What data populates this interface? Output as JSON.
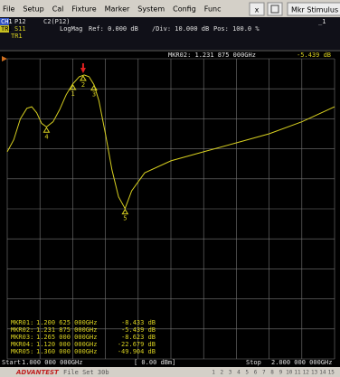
{
  "menu": {
    "items": [
      "File",
      "Setup",
      "Cal",
      "Fixture",
      "Marker",
      "System",
      "Config",
      "Func"
    ],
    "close": "x",
    "panel": "Mkr Stimulus"
  },
  "header": {
    "channel": "CH1",
    "port": "P12",
    "param": "C2(P12)",
    "trace": "TR1",
    "sparam": "S11",
    "format": "LogMag",
    "ref": "Ref: 0.000 dB",
    "div": "/Div: 10.000 dB",
    "pos": "Pos: 100.0 %",
    "trace_label": "TR1",
    "window": "_1"
  },
  "plot": {
    "active_marker": "MKR02: 1.231 875 000GHz",
    "active_value": "-5.439 dB",
    "xlim": [
      1,
      2
    ],
    "ylim": [
      -100,
      0
    ],
    "xticks": [
      1,
      1.1,
      1.2,
      1.3,
      1.4,
      1.5,
      1.6,
      1.7,
      1.8,
      1.9,
      2
    ],
    "yticks": [
      0,
      -10,
      -20,
      -30,
      -40,
      -50,
      -60,
      -70,
      -80,
      -90,
      -100
    ],
    "trace": {
      "color": "#d8d020",
      "x": [
        1,
        1.02,
        1.04,
        1.06,
        1.075,
        1.09,
        1.105,
        1.12,
        1.14,
        1.16,
        1.18,
        1.2,
        1.22,
        1.235,
        1.25,
        1.265,
        1.28,
        1.3,
        1.32,
        1.34,
        1.36,
        1.38,
        1.42,
        1.5,
        1.6,
        1.7,
        1.8,
        1.9,
        2
      ],
      "y": [
        -31,
        -27,
        -20,
        -16.5,
        -16,
        -18,
        -21.5,
        -22.7,
        -21,
        -17,
        -12,
        -8.4,
        -6,
        -5.4,
        -6,
        -8.6,
        -14,
        -25,
        -37,
        -46,
        -49.9,
        -44,
        -38,
        -34,
        -31,
        -28,
        -25,
        -21,
        -16
      ]
    },
    "markers": [
      {
        "label": "MKR01:",
        "freq": "1.200 625 000GHz",
        "value": "-8.433 dB",
        "num": "1",
        "x": 1.200625,
        "y": -8.433
      },
      {
        "label": "MKR02:",
        "freq": "1.231 875 000GHz",
        "value": "-5.439 dB",
        "num": "2",
        "x": 1.231875,
        "y": -5.439
      },
      {
        "label": "MKR03:",
        "freq": "1.265 000 000GHz",
        "value": "-8.623 dB",
        "num": "3",
        "x": 1.265,
        "y": -8.623
      },
      {
        "label": "MKR04:",
        "freq": "1.120 000 000GHz",
        "value": "-22.679 dB",
        "num": "4",
        "x": 1.12,
        "y": -22.679
      },
      {
        "label": "MKR05:",
        "freq": "1.360 000 000GHz",
        "value": "-49.904 dB",
        "num": "5",
        "x": 1.36,
        "y": -49.904
      }
    ]
  },
  "footer": {
    "start": "Start",
    "start_freq": "1.000 000 000GHz",
    "power": "[  0.00 dBm]",
    "stop": "Stop",
    "stop_freq": "2.000 000 000GHz",
    "brand": "ADVANTEST",
    "file": "File Set 30b",
    "numbers": [
      "1",
      "2",
      "3",
      "4",
      "5",
      "6",
      "7",
      "8",
      "9",
      "10",
      "11",
      "12",
      "13",
      "14",
      "15"
    ]
  }
}
